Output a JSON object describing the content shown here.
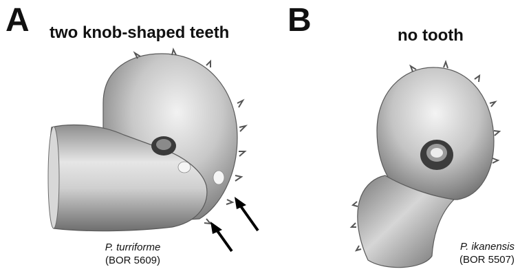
{
  "panels": [
    {
      "letter": "A",
      "title": "two knob-shaped teeth",
      "species": "P. turriforme",
      "catalog": "(BOR 5609)",
      "arrow_count": 2
    },
    {
      "letter": "B",
      "title": "no tooth",
      "species": "P. ikanensis",
      "catalog": "(BOR 5507)"
    }
  ],
  "colors": {
    "text": "#111111",
    "shell_light": "#e2e2e2",
    "shell_mid": "#a9a9a9",
    "shell_dark": "#5c5c5c",
    "arrow": "#000000"
  }
}
